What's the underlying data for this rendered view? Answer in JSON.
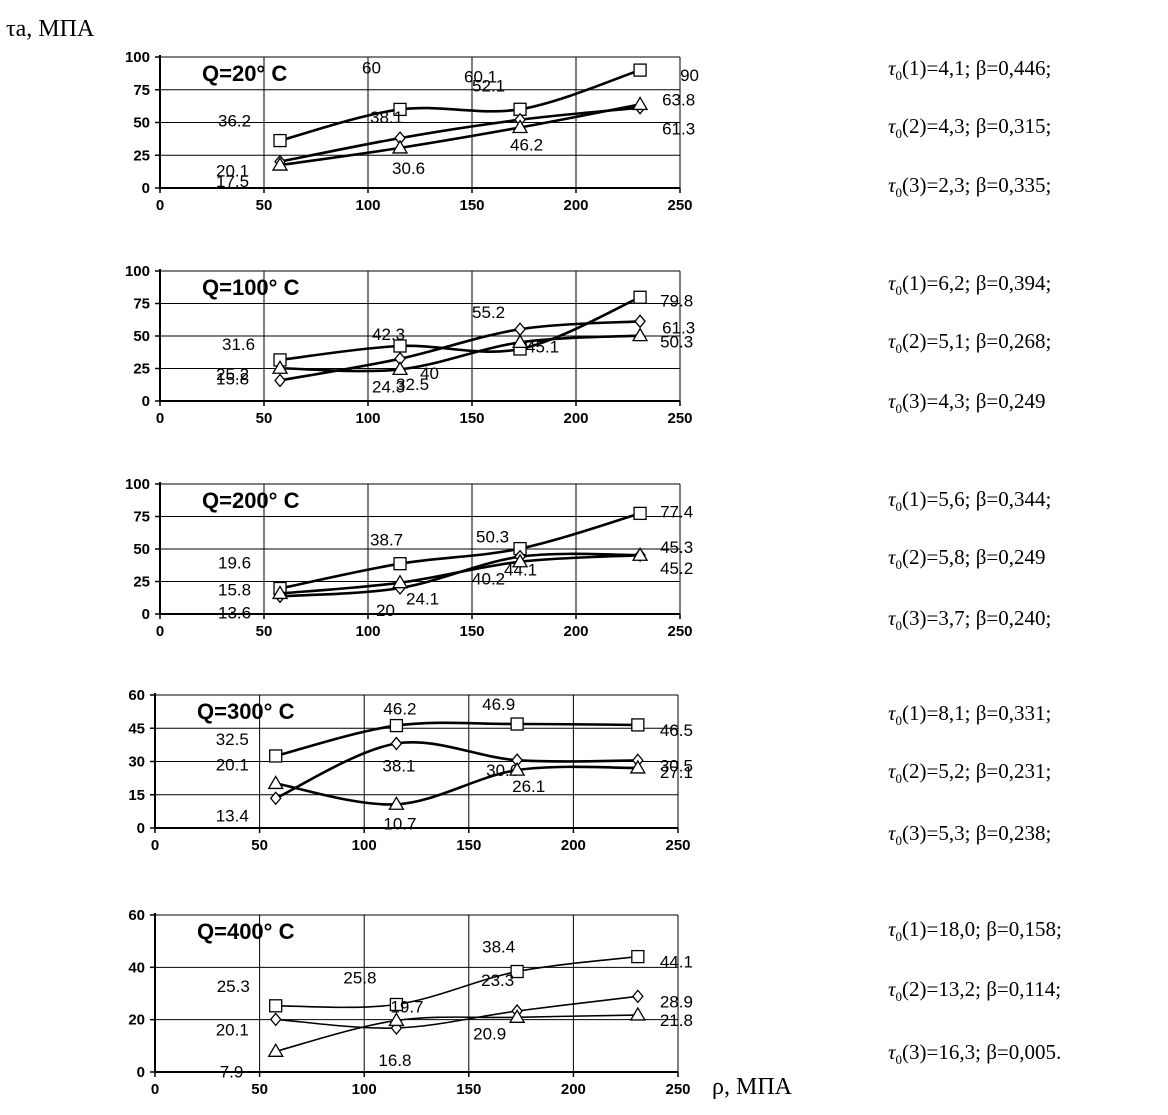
{
  "y_axis_title": "τa, МПА",
  "x_axis_title": "ρ, МПА",
  "chart_data": [
    {
      "type": "line",
      "title": "Q=20° C",
      "x": [
        57.7,
        115.4,
        173.1,
        230.8
      ],
      "xlim": [
        0,
        250
      ],
      "xticks": [
        0,
        50,
        100,
        150,
        200,
        250
      ],
      "ylim": [
        0,
        100
      ],
      "yticks": [
        0,
        25,
        50,
        75,
        100
      ],
      "grid": true,
      "series": [
        {
          "marker": "square",
          "values": [
            36.2,
            60,
            60.1,
            90
          ],
          "labels": [
            "36.2",
            "60",
            "60.1",
            "90"
          ]
        },
        {
          "marker": "diamond",
          "values": [
            20.1,
            38.1,
            52.1,
            61.3
          ],
          "labels": [
            "20.1",
            "38.1",
            "52.1",
            "61.3"
          ]
        },
        {
          "marker": "triangle",
          "values": [
            17.5,
            30.6,
            46.2,
            63.8
          ],
          "labels": [
            "17.5",
            "30.6",
            "46.2",
            "63.8"
          ]
        }
      ],
      "params": [
        {
          "tau_index": "1",
          "tau": "4,1",
          "beta": "0,446",
          "end": ";"
        },
        {
          "tau_index": "2",
          "tau": "4,3",
          "beta": "0,315",
          "end": ";"
        },
        {
          "tau_index": "3",
          "tau": "2,3",
          "beta": "0,335",
          "end": ";"
        }
      ]
    },
    {
      "type": "line",
      "title": "Q=100° C",
      "x": [
        57.7,
        115.4,
        173.1,
        230.8
      ],
      "xlim": [
        0,
        250
      ],
      "xticks": [
        0,
        50,
        100,
        150,
        200,
        250
      ],
      "ylim": [
        0,
        100
      ],
      "yticks": [
        0,
        25,
        50,
        75,
        100
      ],
      "grid": true,
      "series": [
        {
          "marker": "square",
          "values": [
            31.6,
            42.3,
            40,
            79.8
          ],
          "labels": [
            "31.6",
            "42.3",
            "40",
            "79.8"
          ]
        },
        {
          "marker": "diamond",
          "values": [
            15.8,
            32.5,
            55.2,
            61.3
          ],
          "labels": [
            "15.8",
            "32.5",
            "55.2",
            "61.3"
          ]
        },
        {
          "marker": "triangle",
          "values": [
            25.2,
            24.3,
            45.1,
            50.3
          ],
          "labels": [
            "25.2",
            "24.3",
            "45.1",
            "50.3"
          ]
        }
      ],
      "params": [
        {
          "tau_index": "1",
          "tau": "6,2",
          "beta": "0,394",
          "end": ";"
        },
        {
          "tau_index": "2",
          "tau": "5,1",
          "beta": "0,268",
          "end": ";"
        },
        {
          "tau_index": "3",
          "tau": "4,3",
          "beta": "0,249",
          "end": ""
        }
      ]
    },
    {
      "type": "line",
      "title": "Q=200° C",
      "x": [
        57.7,
        115.4,
        173.1,
        230.8
      ],
      "xlim": [
        0,
        250
      ],
      "xticks": [
        0,
        50,
        100,
        150,
        200,
        250
      ],
      "ylim": [
        0,
        100
      ],
      "yticks": [
        0,
        25,
        50,
        75,
        100
      ],
      "grid": true,
      "series": [
        {
          "marker": "square",
          "values": [
            19.6,
            38.7,
            50.3,
            77.4
          ],
          "labels": [
            "19.6",
            "38.7",
            "50.3",
            "77.4"
          ]
        },
        {
          "marker": "diamond",
          "values": [
            13.6,
            20,
            44.1,
            45.3
          ],
          "labels": [
            "13.6",
            "20",
            "44.1",
            "45.3"
          ]
        },
        {
          "marker": "triangle",
          "values": [
            15.8,
            24.1,
            40.2,
            45.2
          ],
          "labels": [
            "15.8",
            "24.1",
            "40.2",
            "45.2"
          ]
        }
      ],
      "params": [
        {
          "tau_index": "1",
          "tau": "5,6",
          "beta": "0,344",
          "end": ";"
        },
        {
          "tau_index": "2",
          "tau": "5,8",
          "beta": "0,249",
          "end": ""
        },
        {
          "tau_index": "3",
          "tau": "3,7",
          "beta": "0,240",
          "end": ";"
        }
      ]
    },
    {
      "type": "line",
      "title": "Q=300° C",
      "x": [
        57.7,
        115.4,
        173.1,
        230.8
      ],
      "xlim": [
        0,
        250
      ],
      "xticks": [
        0,
        50,
        100,
        150,
        200,
        250
      ],
      "ylim": [
        0,
        60
      ],
      "yticks": [
        0,
        15,
        30,
        45,
        60
      ],
      "grid": true,
      "series": [
        {
          "marker": "square",
          "values": [
            32.5,
            46.2,
            46.9,
            46.5
          ],
          "labels": [
            "32.5",
            "46.2",
            "46.9",
            "46.5"
          ]
        },
        {
          "marker": "diamond",
          "values": [
            13.4,
            38.1,
            30.6,
            30.5
          ],
          "labels": [
            "13.4",
            "38.1",
            "30.6",
            "30.5"
          ]
        },
        {
          "marker": "triangle",
          "values": [
            20.1,
            10.7,
            26.1,
            27.1
          ],
          "labels": [
            "20.1",
            "10.7",
            "26.1",
            "27.1"
          ]
        }
      ],
      "params": [
        {
          "tau_index": "1",
          "tau": "8,1",
          "beta": "0,331",
          "end": ";"
        },
        {
          "tau_index": "2",
          "tau": "5,2",
          "beta": "0,231",
          "end": ";"
        },
        {
          "tau_index": "3",
          "tau": "5,3",
          "beta": "0,238",
          "end": ";"
        }
      ]
    },
    {
      "type": "line",
      "title": "Q=400° C",
      "x": [
        57.7,
        115.4,
        173.1,
        230.8
      ],
      "xlim": [
        0,
        250
      ],
      "xticks": [
        0,
        50,
        100,
        150,
        200,
        250
      ],
      "ylim": [
        0,
        60
      ],
      "yticks": [
        0,
        20,
        40,
        60
      ],
      "grid": true,
      "series": [
        {
          "marker": "square",
          "values": [
            25.3,
            25.8,
            38.4,
            44.1
          ],
          "labels": [
            "25.3",
            "25.8",
            "38.4",
            "44.1"
          ]
        },
        {
          "marker": "diamond",
          "values": [
            20.1,
            16.8,
            23.3,
            28.9
          ],
          "labels": [
            "20.1",
            "16.8",
            "23.3",
            "28.9"
          ]
        },
        {
          "marker": "triangle",
          "values": [
            7.9,
            19.7,
            20.9,
            21.8
          ],
          "labels": [
            "7.9",
            "19.7",
            "20.9",
            "21.8"
          ]
        }
      ],
      "params": [
        {
          "tau_index": "1",
          "tau": "18,0",
          "beta": "0,158",
          "end": ";"
        },
        {
          "tau_index": "2",
          "tau": "13,2",
          "beta": "0,114",
          "end": ";"
        },
        {
          "tau_index": "3",
          "tau": "16,3",
          "beta": "0,005",
          "end": "."
        }
      ]
    }
  ]
}
